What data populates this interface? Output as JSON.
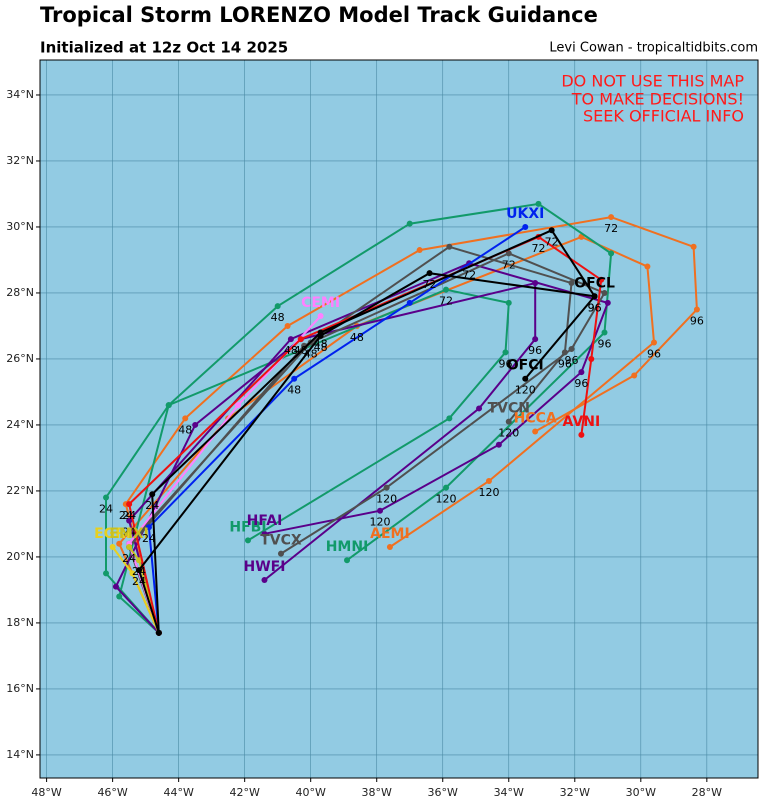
{
  "chart_data": {
    "type": "line",
    "title": "Tropical Storm LORENZO Model Track Guidance",
    "subtitle": "Initialized at 12z Oct 14 2025",
    "credit": "Levi Cowan - tropicaltidbits.com",
    "warning": [
      "DO NOT USE THIS MAP",
      "TO MAKE DECISIONS!",
      "SEEK OFFICIAL INFO"
    ],
    "background": "#92cbe3",
    "grid": true,
    "xlim": [
      -48.2,
      -26.45
    ],
    "ylim": [
      13.3,
      35.06
    ],
    "xticks": [
      {
        "value": -48,
        "label": "48°W"
      },
      {
        "value": -46,
        "label": "46°W"
      },
      {
        "value": -44,
        "label": "44°W"
      },
      {
        "value": -42,
        "label": "42°W"
      },
      {
        "value": -40,
        "label": "40°W"
      },
      {
        "value": -38,
        "label": "38°W"
      },
      {
        "value": -36,
        "label": "36°W"
      },
      {
        "value": -34,
        "label": "34°W"
      },
      {
        "value": -32,
        "label": "32°W"
      },
      {
        "value": -30,
        "label": "30°W"
      },
      {
        "value": -28,
        "label": "28°W"
      }
    ],
    "yticks": [
      {
        "value": 14,
        "label": "14°N"
      },
      {
        "value": 16,
        "label": "16°N"
      },
      {
        "value": 18,
        "label": "18°N"
      },
      {
        "value": 20,
        "label": "20°N"
      },
      {
        "value": 22,
        "label": "22°N"
      },
      {
        "value": 24,
        "label": "24°N"
      },
      {
        "value": 26,
        "label": "26°N"
      },
      {
        "value": 28,
        "label": "28°N"
      },
      {
        "value": 30,
        "label": "30°N"
      },
      {
        "value": 32,
        "label": "32°N"
      },
      {
        "value": 34,
        "label": "34°N"
      }
    ],
    "series": [
      {
        "name": "HCCA",
        "color": "#f07020",
        "x": [
          -44.6,
          -45.6,
          -43.8,
          -40.7,
          -36.7,
          -30.9,
          -28.4,
          -28.3,
          -30.2,
          -33.2
        ],
        "y": [
          17.7,
          21.6,
          24.2,
          27.0,
          29.3,
          30.3,
          29.4,
          27.5,
          25.5,
          23.8
        ],
        "hours": [
          null,
          "24",
          "48",
          null,
          null,
          "72",
          null,
          "96",
          null,
          null
        ]
      },
      {
        "name": "AEMI",
        "color": "#f07020",
        "x": [
          -44.6,
          -45.8,
          -42.5,
          -38.6,
          -31.8,
          -29.8,
          -29.6,
          -34.6,
          -37.6
        ],
        "y": [
          17.7,
          20.4,
          24.2,
          27.0,
          29.7,
          28.8,
          26.5,
          22.3,
          20.3
        ],
        "hours": [
          null,
          null,
          null,
          "48",
          null,
          null,
          "96",
          "120",
          null
        ]
      },
      {
        "name": "HMNI",
        "color": "#129a6a",
        "x": [
          -44.6,
          -46.2,
          -46.2,
          -44.3,
          -41.0,
          -37.0,
          -33.1,
          -30.9,
          -31.1,
          -35.9,
          -38.9
        ],
        "y": [
          17.7,
          19.5,
          21.8,
          24.6,
          27.6,
          30.1,
          30.7,
          29.2,
          26.8,
          22.1,
          19.9
        ],
        "hours": [
          null,
          null,
          "24",
          null,
          "48",
          null,
          null,
          null,
          "96",
          "120",
          null
        ]
      },
      {
        "name": "HFBI",
        "color": "#129a6a",
        "x": [
          -44.6,
          -45.8,
          -44.3,
          -35.9,
          -34.0,
          -34.1,
          -35.8,
          -41.9
        ],
        "y": [
          17.7,
          18.8,
          24.6,
          28.1,
          27.7,
          26.2,
          24.2,
          20.5
        ],
        "hours": [
          null,
          null,
          null,
          "72",
          null,
          "96",
          null,
          null
        ]
      },
      {
        "name": "HWFI",
        "color": "#5a008a",
        "x": [
          -44.6,
          -45.9,
          -43.5,
          -40.3,
          -33.2,
          -33.2,
          -34.9,
          -41.4
        ],
        "y": [
          17.7,
          19.1,
          24.0,
          26.6,
          28.3,
          26.6,
          24.5,
          19.3
        ],
        "hours": [
          null,
          null,
          null,
          null,
          null,
          "96",
          null,
          null
        ]
      },
      {
        "name": "HFAI",
        "color": "#5a008a",
        "x": [
          -44.6,
          -45.5,
          -40.6,
          -35.2,
          -31.0,
          -31.8,
          -34.3,
          -37.9,
          -41.4
        ],
        "y": [
          17.7,
          21.1,
          26.6,
          28.9,
          27.7,
          25.6,
          23.4,
          21.4,
          20.7
        ],
        "hours": [
          null,
          "24",
          "48",
          "72",
          null,
          "96",
          null,
          "120",
          null
        ]
      },
      {
        "name": "TVCX",
        "color": "#505050",
        "x": [
          -44.6,
          -45.5,
          -40.2,
          -34.0,
          -31.1,
          -32.1,
          -37.7,
          -40.9
        ],
        "y": [
          17.7,
          20.3,
          26.4,
          29.2,
          28.0,
          26.3,
          22.1,
          20.1
        ],
        "hours": [
          null,
          "24",
          null,
          "72",
          null,
          "96",
          "120",
          null
        ]
      },
      {
        "name": "TVCN",
        "color": "#505050",
        "x": [
          -44.6,
          -45.5,
          -40.0,
          -35.8,
          -32.1,
          -32.3,
          -34.0
        ],
        "y": [
          17.7,
          20.4,
          26.5,
          29.4,
          28.3,
          26.2,
          24.1
        ],
        "hours": [
          null,
          null,
          "48",
          null,
          null,
          "96",
          "120"
        ]
      },
      {
        "name": "CEMI",
        "color": "#ff80ff",
        "x": [
          -44.6,
          -45.5,
          -42.2,
          -39.7
        ],
        "y": [
          17.7,
          20.4,
          24.6,
          27.3
        ],
        "hours": [
          null,
          null,
          null,
          null
        ]
      },
      {
        "name": "EGRI",
        "color": "#e8d020",
        "x": [
          -44.6,
          -45.4,
          -46.0
        ],
        "y": [
          17.7,
          19.5,
          20.3
        ],
        "hours": [
          null,
          null,
          null
        ]
      },
      {
        "name": "EMXI",
        "color": "#c8c020",
        "x": [
          -44.6,
          -45.2,
          -45.5
        ],
        "y": [
          17.7,
          19.9,
          20.3
        ],
        "hours": [
          null,
          "24",
          null
        ]
      },
      {
        "name": "UKXI",
        "color": "#0022ee",
        "x": [
          -44.6,
          -44.9,
          -40.5,
          -37.0,
          -33.5
        ],
        "y": [
          17.7,
          20.9,
          25.4,
          27.7,
          30.0
        ],
        "hours": [
          null,
          "24",
          "48",
          null,
          null
        ]
      },
      {
        "name": "AVNI",
        "color": "#ee1111",
        "x": [
          -44.6,
          -45.5,
          -40.3,
          -33.1,
          -31.2,
          -31.5,
          -31.8
        ],
        "y": [
          17.7,
          21.6,
          26.6,
          29.7,
          28.4,
          26.0,
          23.7
        ],
        "hours": [
          null,
          "24",
          "48",
          "72",
          null,
          null,
          null
        ]
      },
      {
        "name": "OFCI",
        "color": "#000000",
        "x": [
          -44.6,
          -45.2,
          -39.7,
          -36.4,
          -31.4,
          -33.5
        ],
        "y": [
          17.7,
          19.6,
          26.7,
          28.6,
          27.9,
          25.4
        ],
        "hours": [
          null,
          "24",
          "48",
          "72",
          "96",
          "120"
        ]
      },
      {
        "name": "OFCL",
        "color": "#000000",
        "x": [
          -44.6,
          -44.8,
          -39.7,
          -32.7,
          -31.4
        ],
        "y": [
          17.7,
          21.9,
          26.8,
          29.9,
          27.9
        ],
        "hours": [
          null,
          "24",
          "48",
          "72",
          "96"
        ]
      }
    ]
  }
}
